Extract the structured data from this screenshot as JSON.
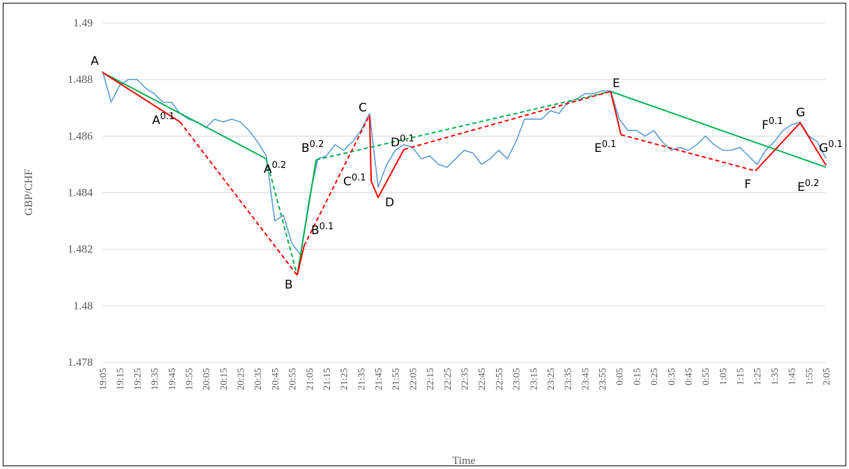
{
  "chart_data": {
    "type": "line",
    "y_label": "GBP/CHF",
    "x_label": "Time",
    "xlim": [
      1145,
      1565
    ],
    "ylim": [
      1.478,
      1.49
    ],
    "yticks": [
      1.478,
      1.48,
      1.482,
      1.484,
      1.486,
      1.488,
      1.49
    ],
    "grid": true,
    "xticks": [
      {
        "value": 1145,
        "label": "19:05"
      },
      {
        "value": 1155,
        "label": "19:15"
      },
      {
        "value": 1165,
        "label": "19:25"
      },
      {
        "value": 1175,
        "label": "19:35"
      },
      {
        "value": 1185,
        "label": "19:45"
      },
      {
        "value": 1195,
        "label": "19:55"
      },
      {
        "value": 1205,
        "label": "20:05"
      },
      {
        "value": 1215,
        "label": "20:15"
      },
      {
        "value": 1225,
        "label": "20:25"
      },
      {
        "value": 1235,
        "label": "20:35"
      },
      {
        "value": 1245,
        "label": "20:45"
      },
      {
        "value": 1255,
        "label": "20:55"
      },
      {
        "value": 1265,
        "label": "21:05"
      },
      {
        "value": 1275,
        "label": "21:15"
      },
      {
        "value": 1285,
        "label": "21:25"
      },
      {
        "value": 1295,
        "label": "21:35"
      },
      {
        "value": 1305,
        "label": "21:45"
      },
      {
        "value": 1315,
        "label": "21:55"
      },
      {
        "value": 1325,
        "label": "22:05"
      },
      {
        "value": 1335,
        "label": "22:15"
      },
      {
        "value": 1345,
        "label": "22:25"
      },
      {
        "value": 1355,
        "label": "22:35"
      },
      {
        "value": 1365,
        "label": "22:45"
      },
      {
        "value": 1375,
        "label": "22:55"
      },
      {
        "value": 1385,
        "label": "23:05"
      },
      {
        "value": 1395,
        "label": "23:15"
      },
      {
        "value": 1405,
        "label": "23:25"
      },
      {
        "value": 1415,
        "label": "23:35"
      },
      {
        "value": 1425,
        "label": "23:45"
      },
      {
        "value": 1435,
        "label": "23:55"
      },
      {
        "value": 1445,
        "label": "0:05"
      },
      {
        "value": 1455,
        "label": "0:15"
      },
      {
        "value": 1465,
        "label": "0:25"
      },
      {
        "value": 1475,
        "label": "0:35"
      },
      {
        "value": 1485,
        "label": "0:45"
      },
      {
        "value": 1495,
        "label": "0:55"
      },
      {
        "value": 1505,
        "label": "1:05"
      },
      {
        "value": 1515,
        "label": "1:15"
      },
      {
        "value": 1525,
        "label": "1:25"
      },
      {
        "value": 1535,
        "label": "1:35"
      },
      {
        "value": 1545,
        "label": "1:45"
      },
      {
        "value": 1555,
        "label": "1:55"
      },
      {
        "value": 1565,
        "label": "2:05"
      }
    ],
    "series": [
      {
        "color": "#5b9bd5",
        "dashed": false,
        "x": [
          1145,
          1150,
          1155,
          1160,
          1165,
          1170,
          1175,
          1180,
          1185,
          1190,
          1195,
          1200,
          1205,
          1210,
          1215,
          1220,
          1225,
          1230,
          1235,
          1240,
          1245,
          1250,
          1255,
          1260,
          1265,
          1270,
          1275,
          1280,
          1285,
          1290,
          1295,
          1300,
          1305,
          1310,
          1315,
          1320,
          1325,
          1330,
          1335,
          1340,
          1345,
          1350,
          1355,
          1360,
          1365,
          1370,
          1375,
          1380,
          1385,
          1390,
          1395,
          1400,
          1405,
          1410,
          1415,
          1420,
          1425,
          1430,
          1435,
          1440,
          1445,
          1450,
          1455,
          1460,
          1465,
          1470,
          1475,
          1480,
          1485,
          1490,
          1495,
          1500,
          1505,
          1510,
          1515,
          1520,
          1525,
          1530,
          1535,
          1540,
          1545,
          1550,
          1555,
          1560,
          1565
        ],
        "values": [
          1.4883,
          1.4872,
          1.4878,
          1.488,
          1.488,
          1.4877,
          1.4875,
          1.4872,
          1.4872,
          1.4868,
          1.4866,
          1.4865,
          1.4863,
          1.4866,
          1.4865,
          1.4866,
          1.4865,
          1.4862,
          1.4858,
          1.4853,
          1.483,
          1.4832,
          1.4822,
          1.4818,
          1.4838,
          1.4852,
          1.4853,
          1.4857,
          1.4855,
          1.4858,
          1.4862,
          1.4868,
          1.4842,
          1.485,
          1.4855,
          1.4857,
          1.4856,
          1.4852,
          1.4853,
          1.485,
          1.4849,
          1.4852,
          1.4855,
          1.4854,
          1.485,
          1.4852,
          1.4855,
          1.4852,
          1.4858,
          1.4866,
          1.4866,
          1.4866,
          1.4869,
          1.4868,
          1.4872,
          1.4873,
          1.4875,
          1.4875,
          1.4876,
          1.4876,
          1.4866,
          1.4862,
          1.4862,
          1.486,
          1.4862,
          1.4858,
          1.4855,
          1.4856,
          1.4855,
          1.4857,
          1.486,
          1.4857,
          1.4855,
          1.4855,
          1.4856,
          1.4853,
          1.485,
          1.4855,
          1.4858,
          1.4862,
          1.4864,
          1.4865,
          1.486,
          1.4858,
          1.4852
        ]
      },
      {
        "color": "#00b050",
        "dashed": false,
        "x": [
          1145,
          1240
        ],
        "values": [
          1.48825,
          1.4852
        ]
      },
      {
        "color": "#00b050",
        "dashed": true,
        "x": [
          1240,
          1258
        ],
        "values": [
          1.4852,
          1.48108
        ]
      },
      {
        "color": "#00b050",
        "dashed": false,
        "x": [
          1258,
          1269
        ],
        "values": [
          1.48108,
          1.48516
        ]
      },
      {
        "color": "#00b050",
        "dashed": true,
        "x": [
          1269,
          1440
        ],
        "values": [
          1.48516,
          1.48758
        ]
      },
      {
        "color": "#00b050",
        "dashed": false,
        "x": [
          1440,
          1565
        ],
        "values": [
          1.48758,
          1.4849
        ]
      },
      {
        "color": "#ff0000",
        "dashed": false,
        "x": [
          1145,
          1190
        ],
        "values": [
          1.48825,
          1.4865
        ]
      },
      {
        "color": "#ff0000",
        "dashed": true,
        "x": [
          1190,
          1258
        ],
        "values": [
          1.4865,
          1.48108
        ]
      },
      {
        "color": "#ff0000",
        "dashed": false,
        "x": [
          1258,
          1262
        ],
        "values": [
          1.48108,
          1.48212
        ]
      },
      {
        "color": "#ff0000",
        "dashed": true,
        "x": [
          1262,
          1300
        ],
        "values": [
          1.48212,
          1.48674
        ]
      },
      {
        "color": "#ff0000",
        "dashed": false,
        "x": [
          1300,
          1301,
          1305,
          1320
        ],
        "values": [
          1.48674,
          1.4844,
          1.48383,
          1.48553
        ]
      },
      {
        "color": "#ff0000",
        "dashed": true,
        "x": [
          1320,
          1440
        ],
        "values": [
          1.48553,
          1.48758
        ]
      },
      {
        "color": "#ff0000",
        "dashed": false,
        "x": [
          1440,
          1446
        ],
        "values": [
          1.48758,
          1.48605
        ]
      },
      {
        "color": "#ff0000",
        "dashed": true,
        "x": [
          1446,
          1524
        ],
        "values": [
          1.48605,
          1.48477
        ]
      },
      {
        "color": "#ff0000",
        "dashed": false,
        "x": [
          1524,
          1550,
          1565
        ],
        "values": [
          1.48477,
          1.48647,
          1.48497
        ]
      }
    ],
    "annotations": [
      {
        "text": "A"
      },
      {
        "text": "A",
        "sup": "0.1"
      },
      {
        "text": "A",
        "sup": "0.2"
      },
      {
        "text": "B"
      },
      {
        "text": "B",
        "sup": "0.1"
      },
      {
        "text": "B",
        "sup": "0.2"
      },
      {
        "text": "C"
      },
      {
        "text": "C",
        "sup": "0.1"
      },
      {
        "text": "D"
      },
      {
        "text": "D",
        "sup": "0.1"
      },
      {
        "text": "E"
      },
      {
        "text": "E",
        "sup": "0.1"
      },
      {
        "text": "F"
      },
      {
        "text": "F",
        "sup": "0.1"
      },
      {
        "text": "G"
      },
      {
        "text": "G",
        "sup": "0.1"
      },
      {
        "text": "E",
        "sup": "0.2"
      }
    ]
  }
}
